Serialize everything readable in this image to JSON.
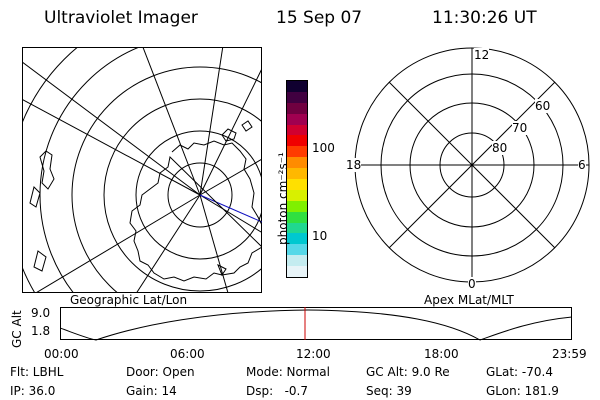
{
  "header": {
    "instrument": "Ultraviolet Imager",
    "date": "15 Sep 07",
    "time": "11:30:26 UT"
  },
  "left_map": {
    "caption": "Geographic Lat/Lon"
  },
  "right_map": {
    "caption": "Apex MLat/MLT",
    "mlt_labels": [
      "12",
      "18",
      "6",
      "0"
    ],
    "lat_labels": [
      "60",
      "70",
      "80"
    ]
  },
  "colorbar": {
    "unit_label": "photon cm⁻²s⁻¹",
    "ticks": [
      "100",
      "10"
    ],
    "colors": [
      "#e8f4f8",
      "#c4ecf0",
      "#55d8e8",
      "#00c8d0",
      "#20d890",
      "#30e040",
      "#80f000",
      "#d8f000",
      "#ffe000",
      "#ffb800",
      "#ff8c00",
      "#ff3c00",
      "#f00000",
      "#d00030",
      "#a00050",
      "#700040",
      "#400040",
      "#100030"
    ]
  },
  "altitude_plot": {
    "axis_label": "GC Alt",
    "y_ticks": [
      "9.0",
      "1.8"
    ],
    "x_ticks": [
      "00:00",
      "06:00",
      "12:00",
      "18:00",
      "23:59"
    ],
    "marker_color": "#cc0000"
  },
  "footer": [
    [
      "Flt: LBHL",
      "Door: Open",
      "Mode: Normal",
      "GC Alt: 9.0 Re",
      "GLat: -70.4"
    ],
    [
      "IP: 36.0",
      "Gain: 14",
      "Dsp:   -0.7",
      "Seq: 39",
      "GLon: 181.9"
    ]
  ]
}
